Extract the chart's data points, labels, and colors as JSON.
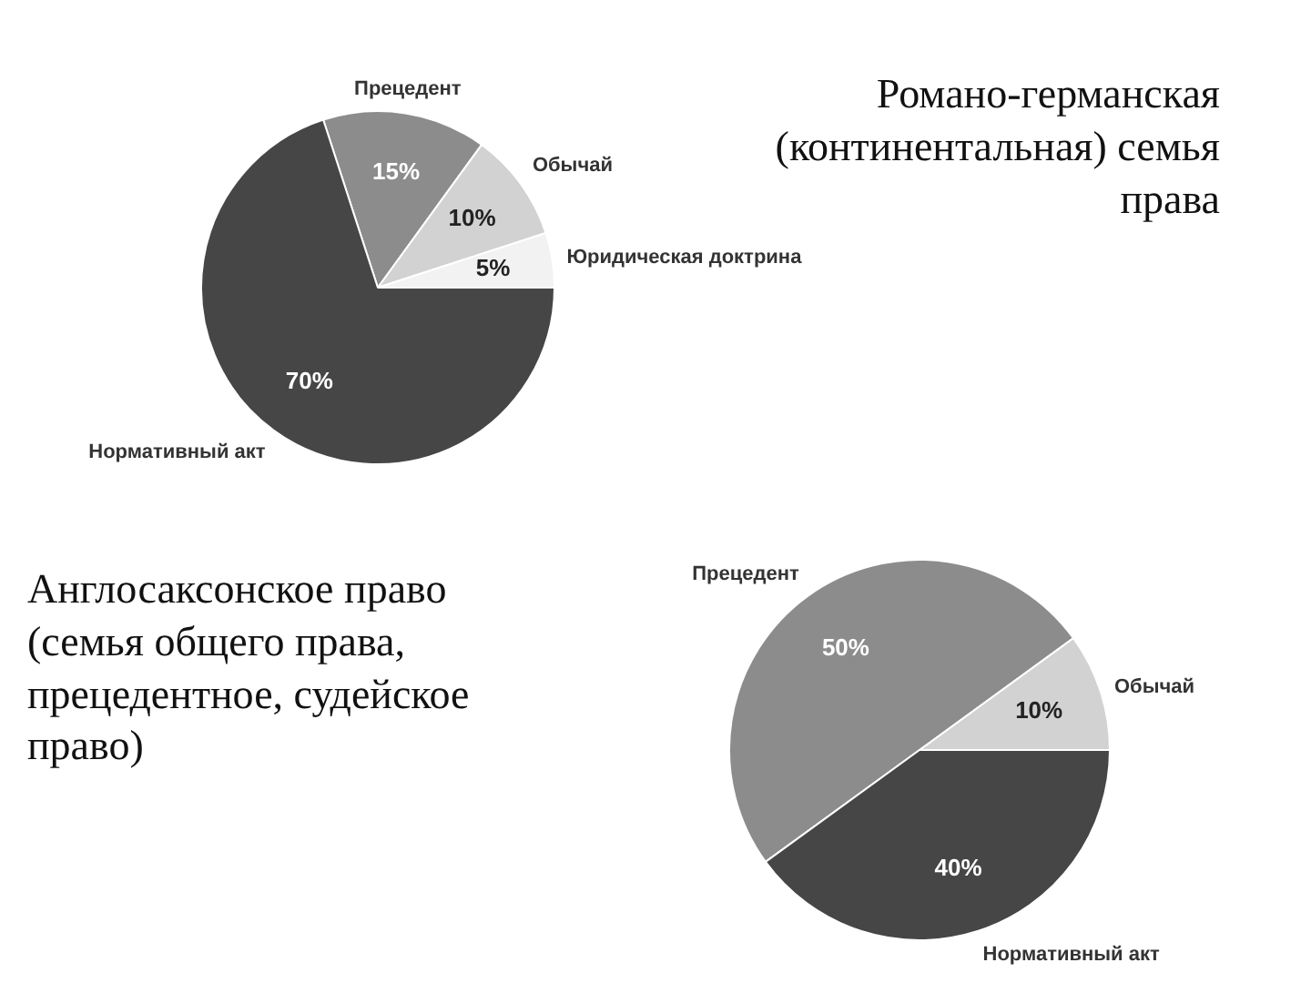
{
  "chart_data": [
    {
      "type": "pie",
      "title": "Романо-германская (континентальная) семья права",
      "categories": [
        "Прецедент",
        "Обычай",
        "Юридическая доктрина",
        "Нормативный акт"
      ],
      "values": [
        15,
        10,
        5,
        70
      ],
      "value_labels": [
        "15%",
        "10%",
        "5%",
        "70%"
      ],
      "colors": [
        "#8c8c8c",
        "#d2d2d2",
        "#f2f2f2",
        "#464646"
      ],
      "legend": false
    },
    {
      "type": "pie",
      "title": "Англосаксонское право  (семья общего права, прецедентное, судейское право)",
      "categories": [
        "Прецедент",
        "Обычай",
        "Нормативный акт"
      ],
      "values": [
        50,
        10,
        40
      ],
      "value_labels": [
        "50%",
        "10%",
        "40%"
      ],
      "colors": [
        "#8c8c8c",
        "#d2d2d2",
        "#464646"
      ],
      "legend": false
    }
  ]
}
